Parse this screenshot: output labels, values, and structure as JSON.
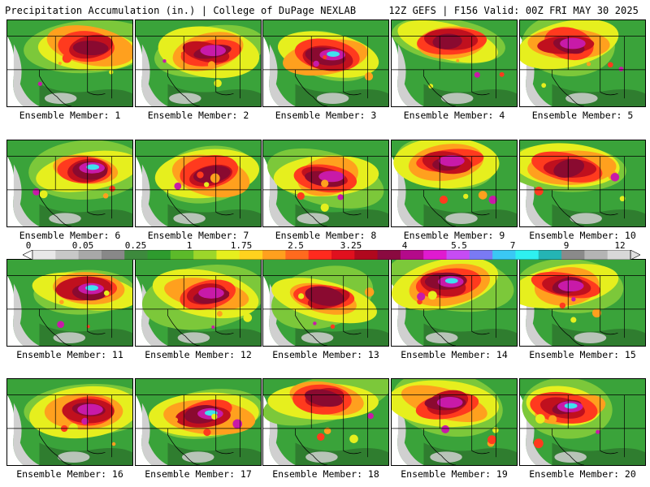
{
  "header": {
    "title": "Precipitation Accumulation (in.) | College of DuPage NEXLAB",
    "valid": "12Z GEFS | F156 Valid: 00Z FRI MAY 30 2025"
  },
  "legend": {
    "labels": [
      "0",
      "0.05",
      "0.25",
      "1",
      "1.75",
      "2.5",
      "3.25",
      "4",
      "5.5",
      "7",
      "9",
      "12"
    ],
    "colors": [
      "#e8e8e8",
      "#c8c8c8",
      "#a8a8a8",
      "#888888",
      "#3d8a3d",
      "#2e9b2e",
      "#5cba2a",
      "#9cd62a",
      "#e6ef1e",
      "#ffd21e",
      "#ffa01e",
      "#ff6a1e",
      "#ff2a1e",
      "#e0101e",
      "#b0081e",
      "#8a0a40",
      "#b40a8a",
      "#e01ad0",
      "#c64cf4",
      "#7a7af4",
      "#3ac8f4",
      "#2ef0f0",
      "#24b4b4",
      "#8a8a8a",
      "#b4b4b4",
      "#d8d8d8"
    ]
  },
  "members": [
    {
      "label": "Ensemble Member: 1"
    },
    {
      "label": "Ensemble Member: 2"
    },
    {
      "label": "Ensemble Member: 3"
    },
    {
      "label": "Ensemble Member: 4"
    },
    {
      "label": "Ensemble Member: 5"
    },
    {
      "label": "Ensemble Member: 6"
    },
    {
      "label": "Ensemble Member: 7"
    },
    {
      "label": "Ensemble Member: 8"
    },
    {
      "label": "Ensemble Member: 9"
    },
    {
      "label": "Ensemble Member: 10"
    },
    {
      "label": "Ensemble Member: 11"
    },
    {
      "label": "Ensemble Member: 12"
    },
    {
      "label": "Ensemble Member: 13"
    },
    {
      "label": "Ensemble Member: 14"
    },
    {
      "label": "Ensemble Member: 15"
    },
    {
      "label": "Ensemble Member: 16"
    },
    {
      "label": "Ensemble Member: 17"
    },
    {
      "label": "Ensemble Member: 18"
    },
    {
      "label": "Ensemble Member: 19"
    },
    {
      "label": "Ensemble Member: 20"
    }
  ]
}
